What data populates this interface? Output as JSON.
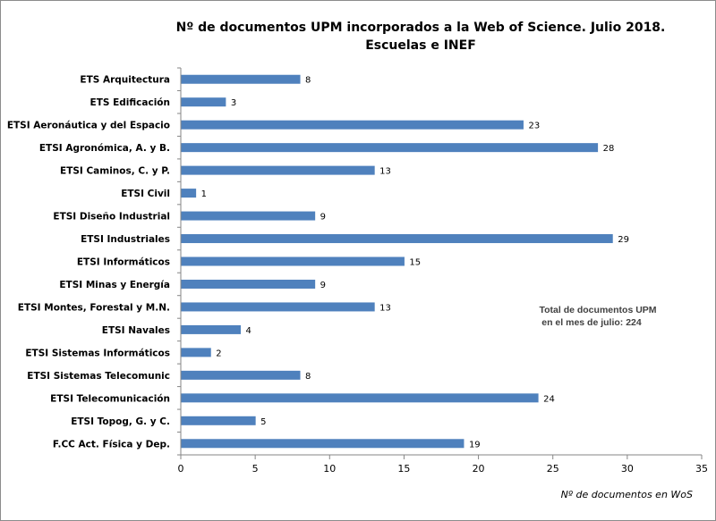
{
  "chart_data": {
    "type": "bar",
    "orientation": "horizontal",
    "title": "Nº de documentos UPM incorporados a la Web of Science. Julio 2018.",
    "subtitle": "Escuelas e INEF",
    "xlabel": "Nº de documentos en WoS",
    "ylabel": "",
    "xlim": [
      0,
      35
    ],
    "xticks": [
      0,
      5,
      10,
      15,
      20,
      25,
      30,
      35
    ],
    "grid": false,
    "bar_color": "#4F81BD",
    "categories": [
      "ETS Arquitectura",
      "ETS Edificación",
      "ETSI Aeronáutica y del Espacio",
      "ETSI Agronómica, A. y B.",
      "ETSI Caminos, C. y P.",
      "ETSI Civil",
      "ETSI Diseño Industrial",
      "ETSI Industriales",
      "ETSI Informáticos",
      "ETSI Minas y Energía",
      "ETSI Montes, Forestal y M.N.",
      "ETSI Navales",
      "ETSI Sistemas Informáticos",
      "ETSI Sistemas Telecomunic",
      "ETSI Telecomunicación",
      "ETSI Topog, G. y C.",
      "F.CC Act. Física y Dep."
    ],
    "values": [
      8,
      3,
      23,
      28,
      13,
      1,
      9,
      29,
      15,
      9,
      13,
      4,
      2,
      8,
      24,
      5,
      19
    ],
    "annotation": [
      "Total de documentos  UPM",
      "en el mes de julio: 224"
    ]
  }
}
